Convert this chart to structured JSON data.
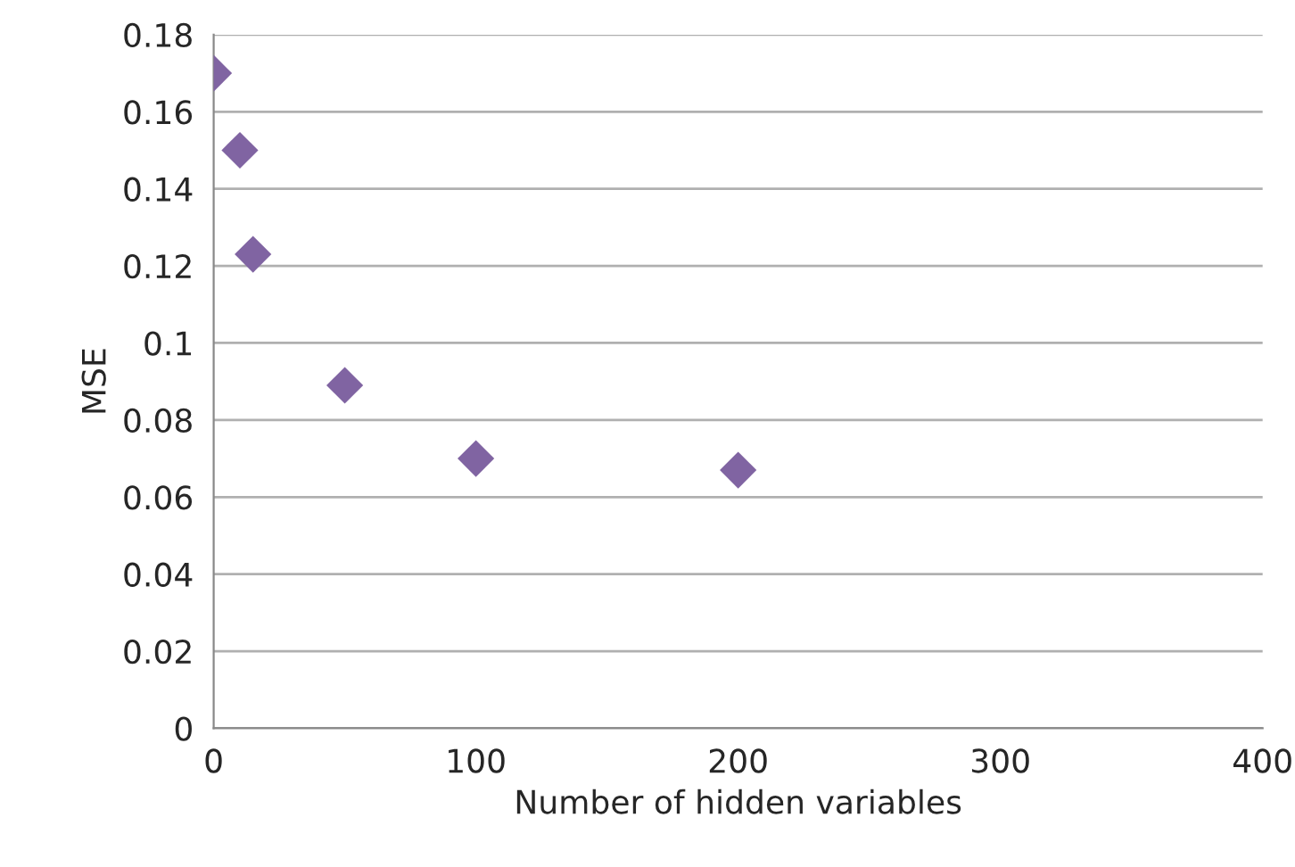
{
  "chart_data": {
    "type": "scatter",
    "xlabel": "Number of hidden variables",
    "ylabel": "MSE",
    "x": [
      0,
      10,
      15,
      50,
      100,
      200
    ],
    "series": [
      {
        "color": "#8064a2",
        "values": [
          0.17,
          0.15,
          0.123,
          0.089,
          0.07,
          0.067
        ]
      }
    ],
    "xlim": [
      0,
      400
    ],
    "xticks": [
      0,
      100,
      200,
      300,
      400
    ],
    "ylim": [
      0,
      0.18
    ],
    "yticks": [
      0,
      0.02,
      0.04,
      0.06,
      0.08,
      {
        "value": 0.1,
        "label": "0.1"
      },
      0.12,
      0.14,
      0.16,
      0.18
    ],
    "grid": "y",
    "marker": "diamond",
    "legend": false
  }
}
